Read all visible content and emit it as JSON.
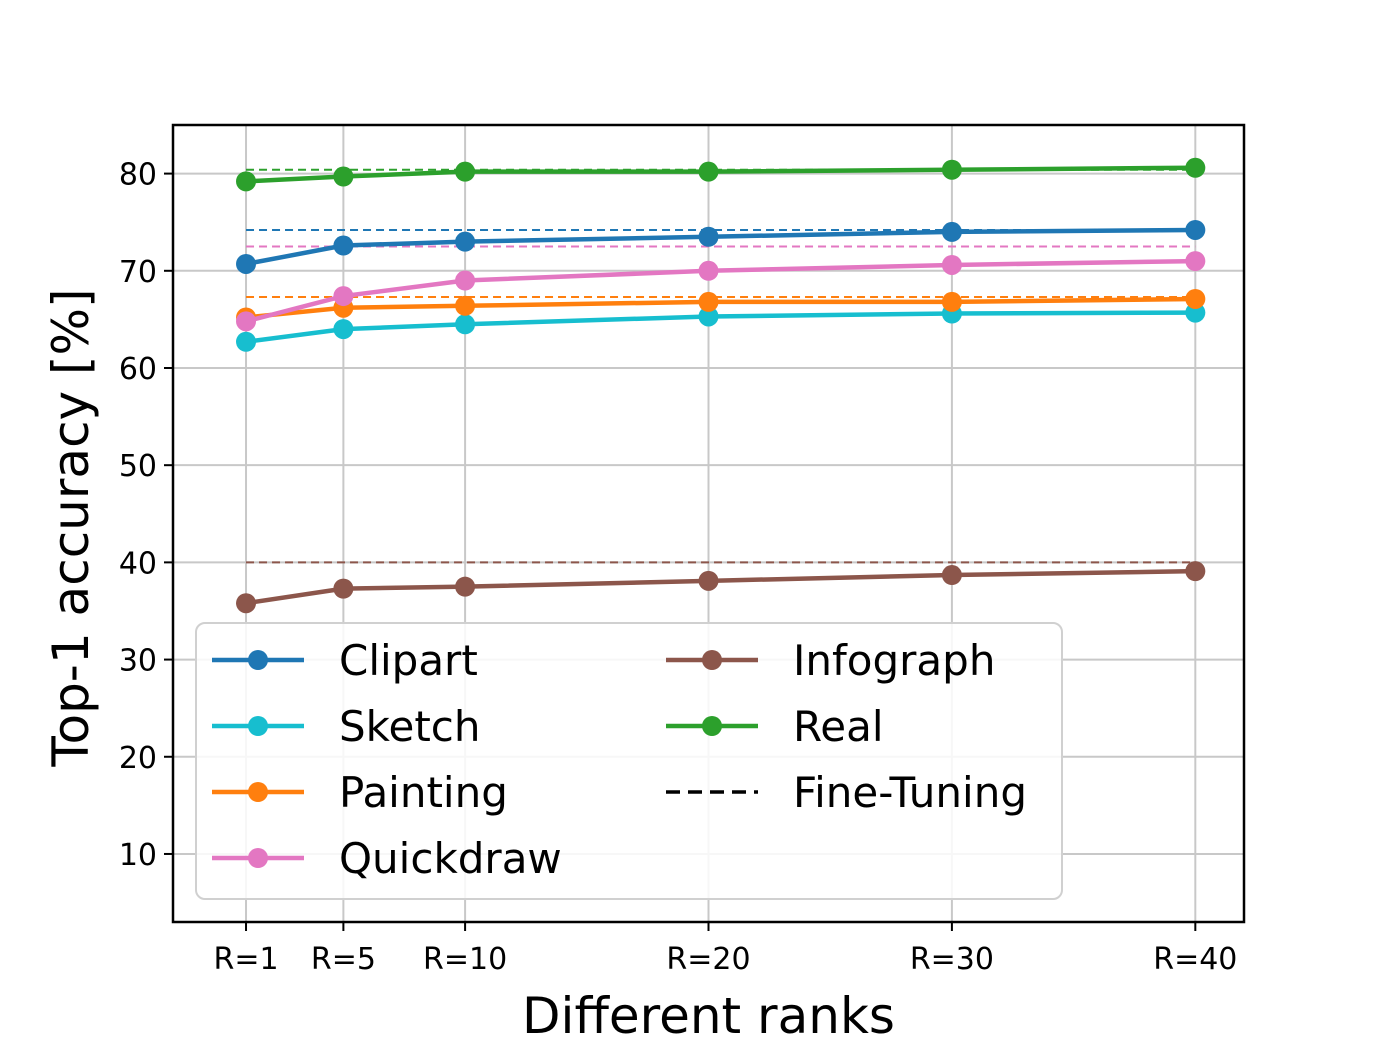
{
  "chart_data": {
    "type": "line",
    "title": "",
    "xlabel": "Different ranks",
    "ylabel": "Top-1 accuracy [%]",
    "x_positions": [
      1,
      5,
      10,
      20,
      30,
      40
    ],
    "categories": [
      "R=1",
      "R=5",
      "R=10",
      "R=20",
      "R=30",
      "R=40"
    ],
    "ylim": [
      3,
      85
    ],
    "yticks": [
      10,
      20,
      30,
      40,
      50,
      60,
      70,
      80
    ],
    "grid": true,
    "legend_position": "lower-left",
    "legend_columns": 2,
    "series": [
      {
        "name": "Clipart",
        "color": "#1f77b4",
        "values": [
          70.7,
          72.6,
          73.0,
          73.5,
          74.0,
          74.2
        ],
        "finetune": 74.2
      },
      {
        "name": "Sketch",
        "color": "#17becf",
        "values": [
          62.7,
          64.0,
          64.5,
          65.3,
          65.6,
          65.7
        ],
        "finetune": null
      },
      {
        "name": "Painting",
        "color": "#ff7f0e",
        "values": [
          65.2,
          66.2,
          66.4,
          66.8,
          66.8,
          67.1
        ],
        "finetune": 67.3
      },
      {
        "name": "Quickdraw",
        "color": "#e377c2",
        "values": [
          64.8,
          67.4,
          69.0,
          70.0,
          70.6,
          71.0
        ],
        "finetune": 72.5
      },
      {
        "name": "Infograph",
        "color": "#8c564b",
        "values": [
          35.8,
          37.3,
          37.5,
          38.1,
          38.7,
          39.1
        ],
        "finetune": 40.0
      },
      {
        "name": "Real",
        "color": "#2ca02c",
        "values": [
          79.2,
          79.7,
          80.2,
          80.2,
          80.4,
          80.6
        ],
        "finetune": 80.4
      }
    ],
    "finetune_legend": {
      "name": "Fine-Tuning",
      "color": "#000000",
      "style": "dashed"
    }
  }
}
